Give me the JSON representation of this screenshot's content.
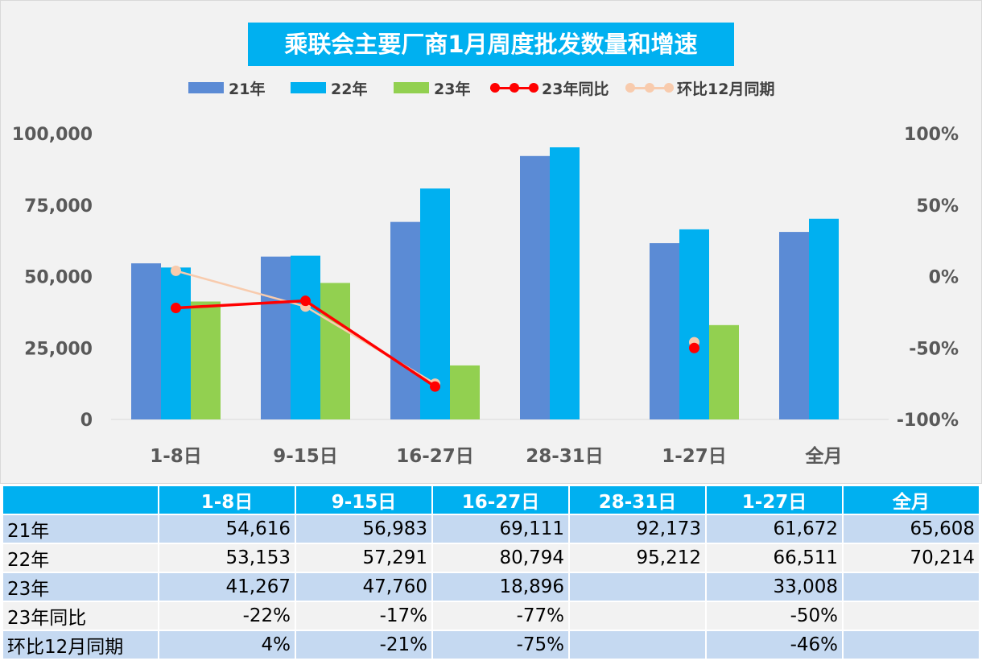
{
  "chart_data": {
    "type": "bar",
    "title": "乘联会主要厂商1月周度批发数量和增速",
    "categories": [
      "1-8日",
      "9-15日",
      "16-27日",
      "28-31日",
      "1-27日",
      "全月"
    ],
    "series": [
      {
        "name": "21年",
        "kind": "bar",
        "axis": "left",
        "color": "#5b8bd5",
        "values": [
          54616,
          56983,
          69111,
          92173,
          61672,
          65608
        ]
      },
      {
        "name": "22年",
        "kind": "bar",
        "axis": "left",
        "color": "#00b0f0",
        "values": [
          53153,
          57291,
          80794,
          95212,
          66511,
          70214
        ]
      },
      {
        "name": "23年",
        "kind": "bar",
        "axis": "left",
        "color": "#92d050",
        "values": [
          41267,
          47760,
          18896,
          null,
          33008,
          null
        ]
      },
      {
        "name": "23年同比",
        "kind": "line",
        "axis": "right",
        "color": "#ff0000",
        "values": [
          -22,
          -17,
          -77,
          null,
          -50,
          null
        ]
      },
      {
        "name": "环比12月同期",
        "kind": "line",
        "axis": "right",
        "color": "#f8cbad",
        "values": [
          4,
          -21,
          -75,
          null,
          -46,
          null
        ]
      }
    ],
    "y_left": {
      "range": [
        0,
        100000
      ],
      "ticks": [
        "0",
        "25,000",
        "50,000",
        "75,000",
        "100,000"
      ]
    },
    "y_right": {
      "range": [
        -100,
        100
      ],
      "unit": "%",
      "ticks": [
        "-100%",
        "-50%",
        "0%",
        "50%",
        "100%"
      ]
    },
    "legend_position": "top",
    "grid": false
  },
  "table": {
    "headers": [
      "",
      "1-8日",
      "9-15日",
      "16-27日",
      "28-31日",
      "1-27日",
      "全月"
    ],
    "rows": [
      [
        "21年",
        "54,616",
        "56,983",
        "69,111",
        "92,173",
        "61,672",
        "65,608"
      ],
      [
        "22年",
        "53,153",
        "57,291",
        "80,794",
        "95,212",
        "66,511",
        "70,214"
      ],
      [
        "23年",
        "41,267",
        "47,760",
        "18,896",
        "",
        "33,008",
        ""
      ],
      [
        "23年同比",
        "-22%",
        "-17%",
        "-77%",
        "",
        "-50%",
        ""
      ],
      [
        "环比12月同期",
        "4%",
        "-21%",
        "-75%",
        "",
        "-46%",
        ""
      ]
    ]
  }
}
